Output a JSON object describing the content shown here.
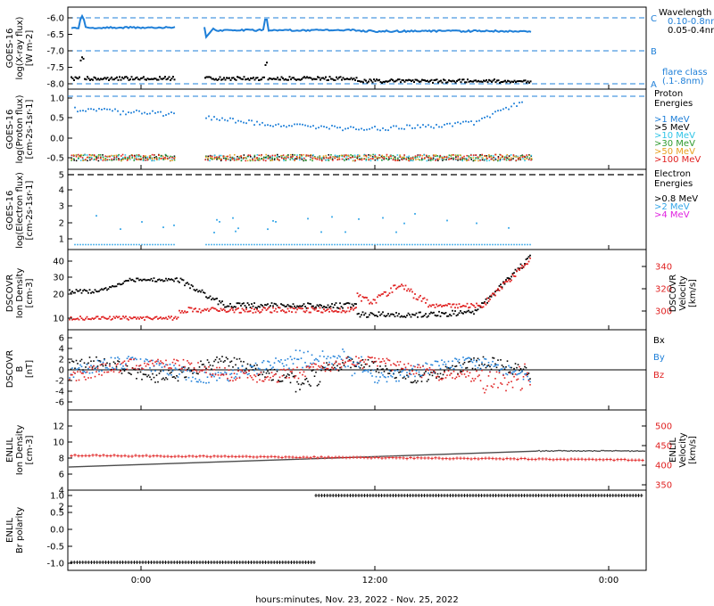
{
  "chart_data": {
    "type": "scatter",
    "footer": "hours:minutes, Nov. 23, 2022 - Nov. 25, 2022",
    "x_ticks": [
      "0:00",
      "12:00",
      "0:00"
    ],
    "colors": {
      "black": "#000000",
      "blue": "#1e7fd8",
      "ltblue": "#35a6e8",
      "cyan": "#2ec4e6",
      "green": "#2e9a2e",
      "orange": "#e8a020",
      "red": "#e02020",
      "magenta": "#e020e0"
    },
    "panels": [
      {
        "id": "xray",
        "ylabel": [
          "GOES-16",
          "log(X-ray flux)",
          "[W m-2]"
        ],
        "yticks": [
          "-6.0",
          "-6.5",
          "-7.0",
          "-7.5",
          "-8.0"
        ],
        "right_labels": [
          "Wavelength",
          "0.10-0.8nm",
          "0.05-0.4nm",
          "flare class",
          "(.1-.8nm)"
        ],
        "flare_levels": [
          "C",
          "B",
          "A"
        ],
        "series": [
          {
            "name": "0.10-0.8nm",
            "color": "blue",
            "level": -6.3
          },
          {
            "name": "0.05-0.4nm",
            "color": "black",
            "level": -7.8
          }
        ]
      },
      {
        "id": "proton",
        "ylabel": [
          "GOES-16",
          "log(Proton flux)",
          "[cm-2s-1sr-1]"
        ],
        "yticks": [
          "1.0",
          "0.5",
          "0.0",
          "-0.5"
        ],
        "right_labels": [
          "Proton",
          "Energies"
        ],
        "series": [
          {
            "name": ">1 MeV",
            "color": "blue"
          },
          {
            "name": ">5 MeV",
            "color": "black"
          },
          {
            "name": ">10 MeV",
            "color": "cyan"
          },
          {
            "name": ">30 MeV",
            "color": "green"
          },
          {
            "name": ">50 MeV",
            "color": "orange"
          },
          {
            "name": ">100 MeV",
            "color": "red"
          }
        ]
      },
      {
        "id": "electron",
        "ylabel": [
          "GOES-16",
          "log(Electron flux)",
          "[cm-2s-1sr-1]"
        ],
        "yticks": [
          "5",
          "4",
          "3",
          "2",
          "1"
        ],
        "right_labels": [
          "Electron",
          "Energies"
        ],
        "series": [
          {
            "name": ">0.8 MeV",
            "color": "black"
          },
          {
            "name": ">2 MeV",
            "color": "ltblue"
          },
          {
            "name": ">4 MeV",
            "color": "magenta"
          }
        ]
      },
      {
        "id": "dscovr-plasma",
        "ylabel": [
          "DSCOVR",
          "Ion Density",
          "[cm-3]"
        ],
        "yticks": [
          "40",
          "30",
          "20",
          "10"
        ],
        "right_ylabel": [
          "DSCOVR",
          "Velocity",
          "[km/s]"
        ],
        "right_yticks": [
          "340",
          "320",
          "300"
        ],
        "series": [
          {
            "name": "Ion Density",
            "color": "black"
          },
          {
            "name": "Velocity",
            "color": "red"
          }
        ]
      },
      {
        "id": "dscovr-mag",
        "ylabel": [
          "DSCOVR",
          "B",
          "[nT]"
        ],
        "yticks": [
          "6",
          "4",
          "2",
          "0",
          "-2",
          "-4",
          "-6"
        ],
        "series": [
          {
            "name": "Bx",
            "color": "black"
          },
          {
            "name": "By",
            "color": "blue"
          },
          {
            "name": "Bz",
            "color": "red"
          }
        ]
      },
      {
        "id": "enlil-plasma",
        "ylabel": [
          "ENLIL",
          "Ion Density",
          "[cm-3]"
        ],
        "yticks": [
          "12",
          "10",
          "8",
          "6",
          "4",
          "2"
        ],
        "right_ylabel": [
          "ENLIL",
          "Velocity",
          "[km/s]"
        ],
        "right_yticks": [
          "500",
          "450",
          "400",
          "350"
        ],
        "series": [
          {
            "name": "Ion Density",
            "color": "black"
          },
          {
            "name": "Velocity",
            "color": "red"
          }
        ]
      },
      {
        "id": "enlil-polarity",
        "ylabel": [
          "ENLIL",
          "Br polarity"
        ],
        "yticks": [
          "1.0",
          "0.5",
          "0.0",
          "-0.5",
          "-1.0"
        ],
        "series": [
          {
            "name": "Br polarity",
            "color": "black",
            "values": [
              -1.0,
              1.0
            ]
          }
        ]
      }
    ]
  }
}
